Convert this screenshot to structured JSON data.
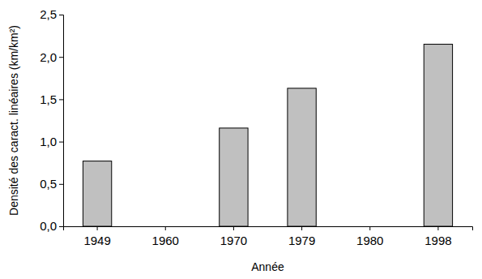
{
  "chart_data": {
    "type": "bar",
    "x_label": "Année",
    "y_label": "Densité des caract. linéaires (km/km²)",
    "categories": [
      "1949",
      "1960",
      "1970",
      "1979",
      "1980",
      "1998"
    ],
    "values": [
      0.77,
      null,
      1.16,
      1.63,
      null,
      2.15
    ],
    "color": "#c0c0c0",
    "ylim": [
      0,
      2.5
    ],
    "yticks": [
      {
        "value": 0,
        "label": "0,0"
      },
      {
        "value": 0.5,
        "label": "0,5"
      },
      {
        "value": 1,
        "label": "1,0"
      },
      {
        "value": 1.5,
        "label": "1,5"
      },
      {
        "value": 2,
        "label": "2,0"
      },
      {
        "value": 2.5,
        "label": "2,5"
      }
    ],
    "grid": false
  }
}
